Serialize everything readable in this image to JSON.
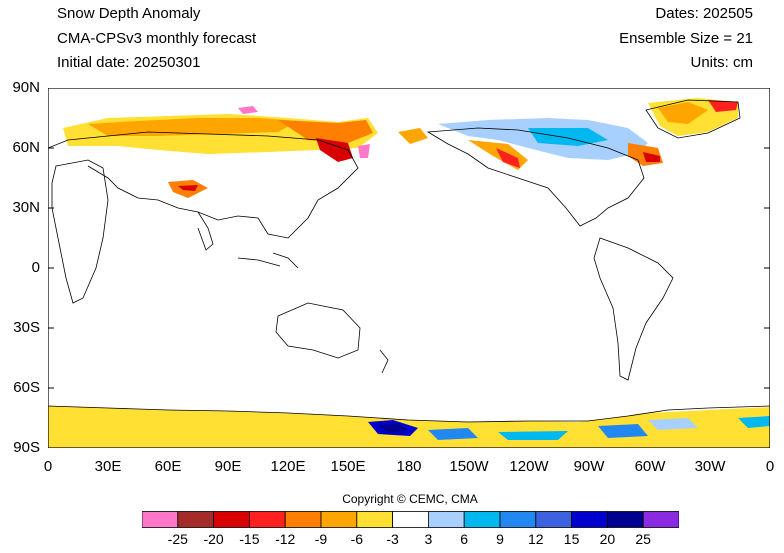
{
  "header": {
    "title": "Snow Depth Anomaly",
    "model": "CMA-CPSv3 monthly forecast",
    "initial": "Initial date: 20250301",
    "dates": "Dates: 202505",
    "ensemble": "Ensemble Size = 21",
    "units": "Units: cm"
  },
  "axes": {
    "lat_labels": [
      "90N",
      "60N",
      "30N",
      "0",
      "30S",
      "60S",
      "90S"
    ],
    "lon_labels": [
      "0",
      "30E",
      "60E",
      "90E",
      "120E",
      "150E",
      "180",
      "150W",
      "120W",
      "90W",
      "60W",
      "30W",
      "0"
    ]
  },
  "copyright": "Copyright © CEMC, CMA",
  "colorbar": {
    "labels": [
      "-25",
      "-20",
      "-15",
      "-12",
      "-9",
      "-6",
      "-3",
      "3",
      "6",
      "9",
      "12",
      "15",
      "20",
      "25"
    ],
    "colors": [
      "#ff77c8",
      "#a52a2a",
      "#d80000",
      "#ff2020",
      "#ff7f00",
      "#ffa500",
      "#ffe033",
      "#ffffff",
      "#a8d0ff",
      "#00b8f0",
      "#2088f0",
      "#3c62e0",
      "#0000cd",
      "#000090",
      "#8a2be2"
    ]
  },
  "chart_data": {
    "type": "heatmap",
    "title": "Snow Depth Anomaly",
    "lon_range": [
      0,
      360
    ],
    "lat_range": [
      -90,
      90
    ],
    "units": "cm"
  }
}
